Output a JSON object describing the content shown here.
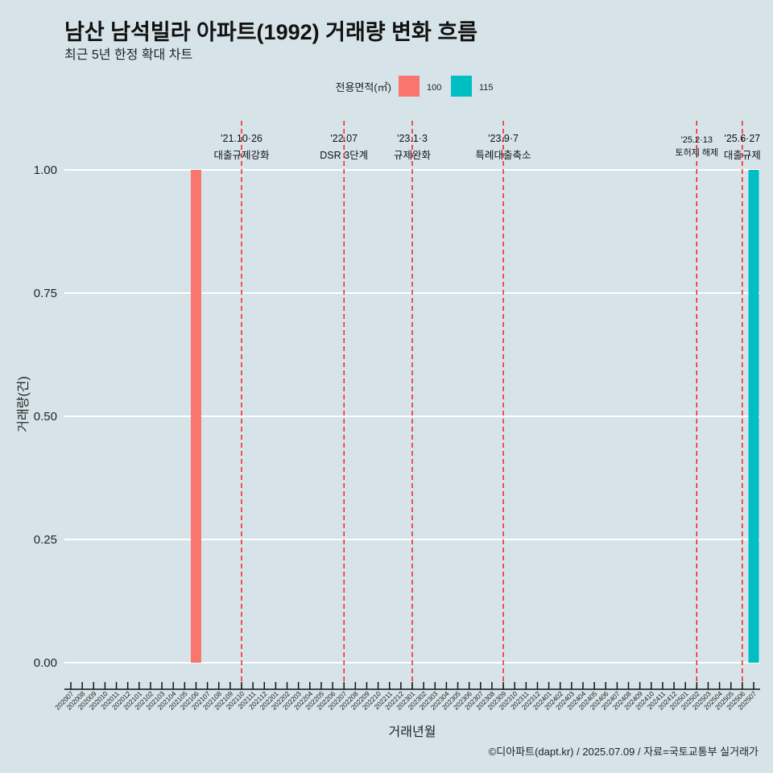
{
  "title": "남산 남석빌라 아파트(1992) 거래량 변화 흐름",
  "subtitle": "최근 5년 한정 확대 차트",
  "caption": "©디아파트(dapt.kr) / 2025.07.09 / 자료=국토교통부 실거래가",
  "chart_data": {
    "type": "bar",
    "xlabel": "거래년월",
    "ylabel": "거래량(건)",
    "ylim": [
      0,
      1
    ],
    "yticks": [
      "0.00",
      "0.25",
      "0.50",
      "0.75",
      "1.00"
    ],
    "legend": {
      "title": "전용면적(㎡)",
      "placement": "top",
      "entries": [
        {
          "name": "100",
          "color": "#f8766d"
        },
        {
          "name": "115",
          "color": "#00bfc4"
        }
      ]
    },
    "categories": [
      "202007",
      "202008",
      "202009",
      "202010",
      "202011",
      "202012",
      "202101",
      "202102",
      "202103",
      "202104",
      "202105",
      "202106",
      "202107",
      "202108",
      "202109",
      "202110",
      "202111",
      "202112",
      "202201",
      "202202",
      "202203",
      "202204",
      "202205",
      "202206",
      "202207",
      "202208",
      "202209",
      "202210",
      "202211",
      "202212",
      "202301",
      "202302",
      "202303",
      "202304",
      "202305",
      "202306",
      "202307",
      "202308",
      "202309",
      "202310",
      "202311",
      "202312",
      "202401",
      "202402",
      "202403",
      "202404",
      "202405",
      "202406",
      "202407",
      "202408",
      "202409",
      "202410",
      "202411",
      "202412",
      "202501",
      "202502",
      "202503",
      "202504",
      "202505",
      "202506",
      "202507"
    ],
    "series": [
      {
        "name": "100",
        "points": [
          {
            "x": "202106",
            "y": 1
          }
        ]
      },
      {
        "name": "115",
        "points": [
          {
            "x": "202507",
            "y": 1
          }
        ]
      }
    ],
    "annotations": [
      {
        "x": "202110",
        "date": "'21.10·26",
        "label": "대출규제강화"
      },
      {
        "x": "202207",
        "date": "'22.07",
        "label": "DSR 3단계"
      },
      {
        "x": "202301",
        "date": "'23.1·3",
        "label": "규제완화"
      },
      {
        "x": "202309",
        "date": "'23.9·7",
        "label": "특례대출축소"
      },
      {
        "x": "202502",
        "date": "'25.2·13",
        "label": "토허제 해제"
      },
      {
        "x": "202506",
        "date": "'25.6·27",
        "label": "대출규제"
      }
    ]
  }
}
